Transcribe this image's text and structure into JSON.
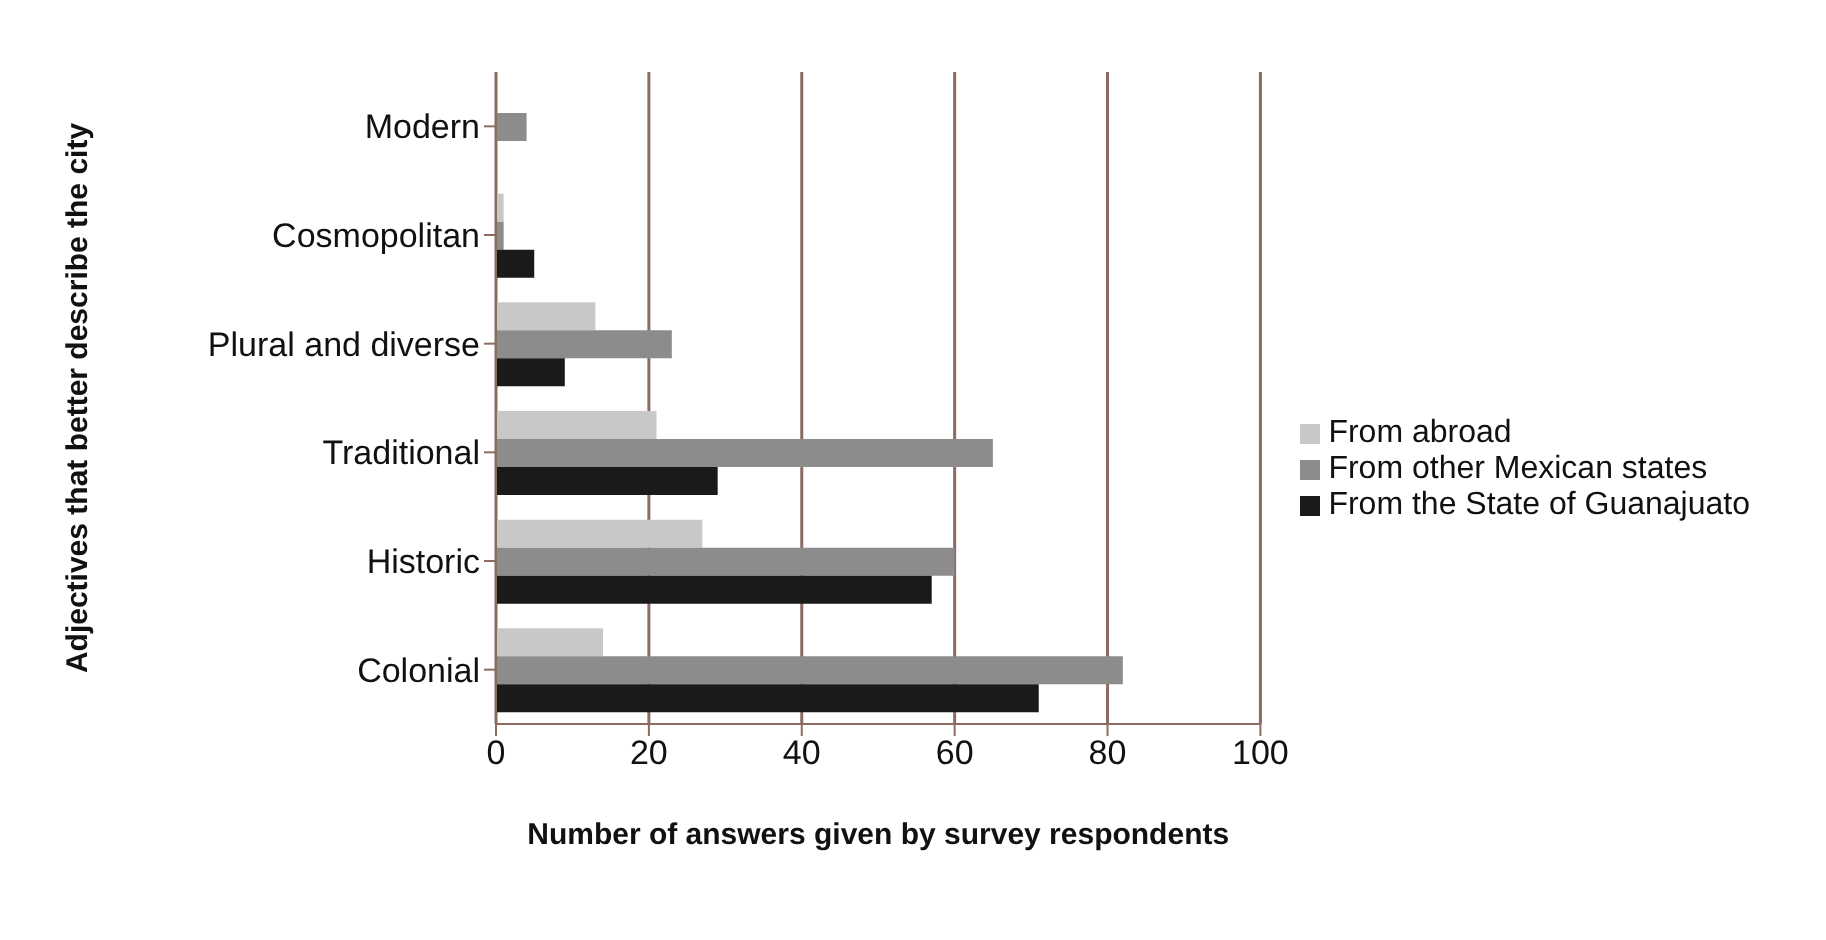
{
  "chart_data": {
    "type": "bar",
    "orientation": "horizontal",
    "xlabel": "Number of answers given by survey respondents",
    "ylabel": "Adjectives that better describe the city",
    "categories": [
      "Modern",
      "Cosmopolitan",
      "Plural and diverse",
      "Traditional",
      "Historic",
      "Colonial"
    ],
    "series": [
      {
        "name": "From abroad",
        "color": "#c8c8c8",
        "values": [
          0,
          1,
          13,
          21,
          27,
          14
        ]
      },
      {
        "name": "From other Mexican states",
        "color": "#8c8c8c",
        "values": [
          4,
          1,
          23,
          65,
          60,
          82
        ]
      },
      {
        "name": "From the State of Guanajuato",
        "color": "#1a1a1a",
        "values": [
          0,
          5,
          9,
          29,
          57,
          71
        ]
      }
    ],
    "xlim": [
      0,
      100
    ],
    "xticks": [
      0,
      20,
      40,
      60,
      80,
      100
    ],
    "grid": "x",
    "legend": "right"
  }
}
